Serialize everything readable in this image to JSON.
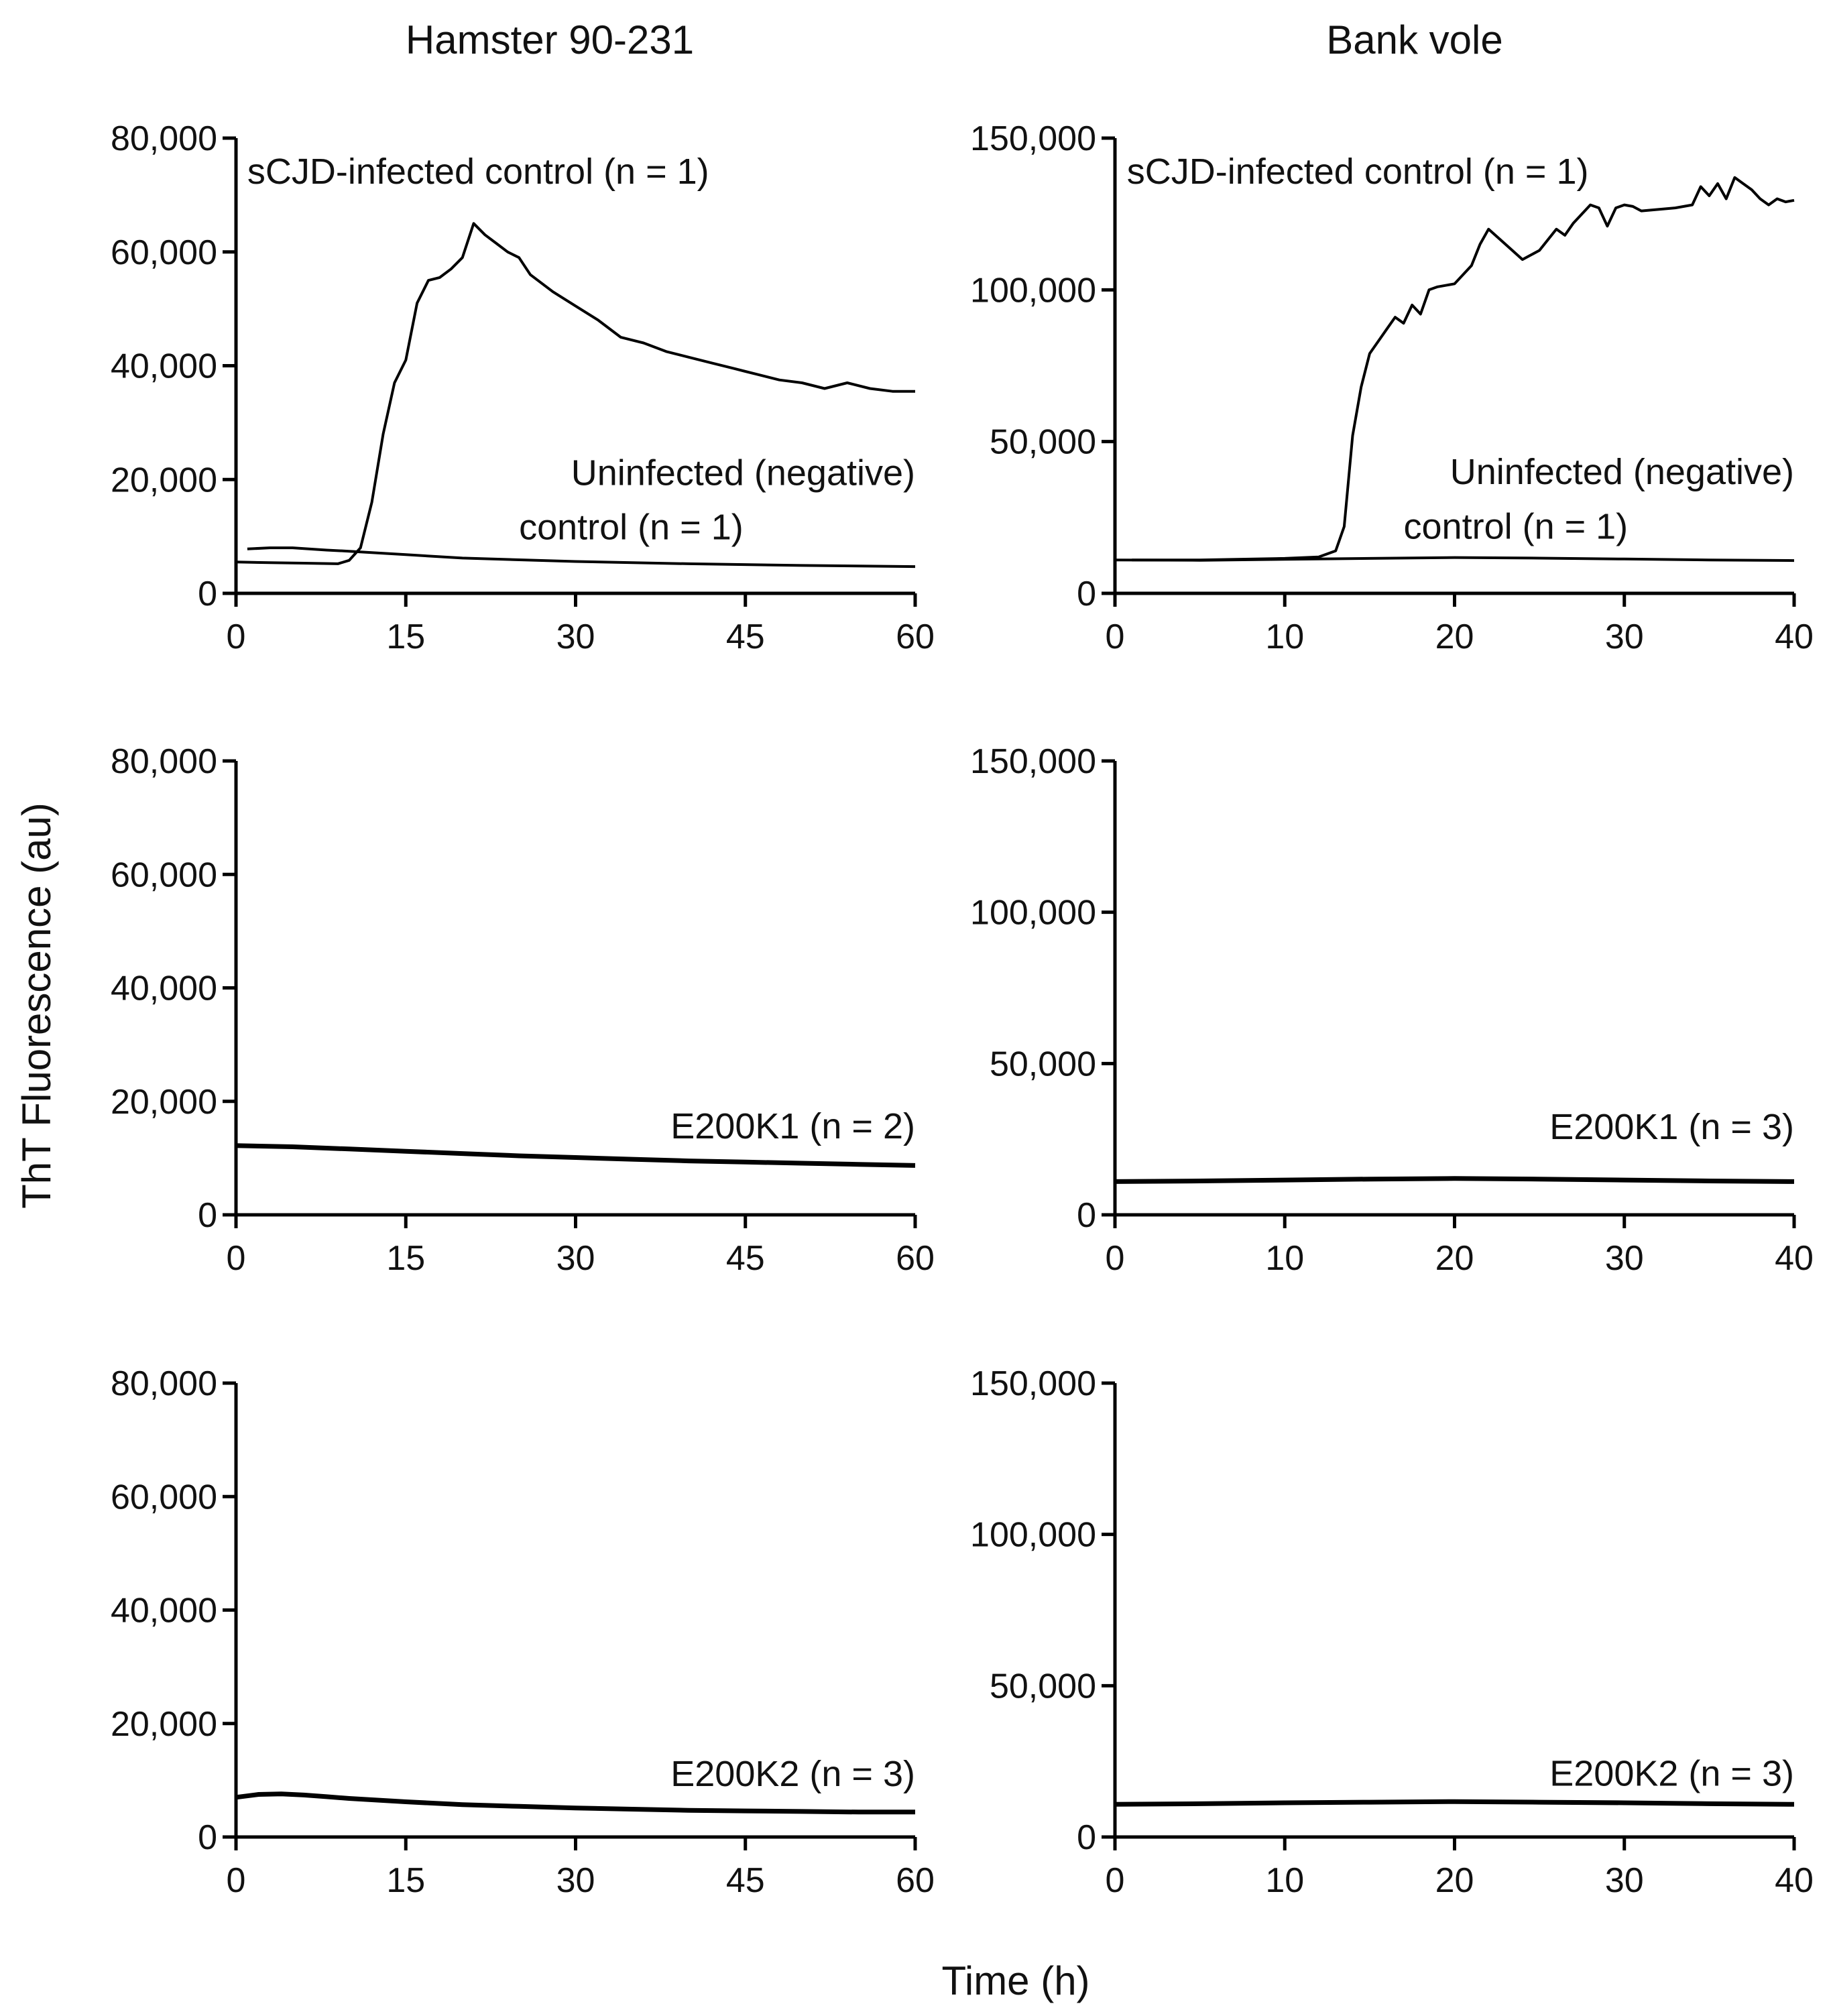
{
  "figure": {
    "column_titles": [
      "Hamster 90-231",
      "Bank vole"
    ],
    "y_axis_title": "ThT Fluorescence (au)",
    "x_axis_title": "Time (h)"
  },
  "chart_data": [
    {
      "id": "hamster-controls",
      "type": "line",
      "column": "Hamster 90-231",
      "xlabel": "Time (h)",
      "ylabel": "ThT Fluorescence (au)",
      "xlim": [
        0,
        60
      ],
      "ylim": [
        0,
        80000
      ],
      "xticks": [
        0,
        15,
        30,
        45,
        60
      ],
      "xtick_labels": [
        "0",
        "15",
        "30",
        "45",
        "60"
      ],
      "yticks": [
        0,
        20000,
        40000,
        60000,
        80000
      ],
      "ytick_labels": [
        "0",
        "20,000",
        "40,000",
        "60,000",
        "80,000"
      ],
      "annotations": [
        {
          "text": "sCJD-infected control (n = 1)",
          "x": 1,
          "y": 72000,
          "anchor": "start"
        },
        {
          "text": "Uninfected (negative)",
          "x": 60,
          "y": 19000,
          "anchor": "end"
        },
        {
          "text": "control (n = 1)",
          "x": 25,
          "y": 9500,
          "anchor": "start"
        }
      ],
      "series": [
        {
          "name": "sCJD-infected control (n = 1)",
          "x": [
            0,
            3,
            6,
            9,
            10,
            11,
            12,
            13,
            14,
            15,
            16,
            17,
            18,
            19,
            20,
            21,
            22,
            23,
            24,
            25,
            26,
            28,
            30,
            32,
            34,
            36,
            38,
            40,
            42,
            44,
            45,
            46,
            48,
            50,
            52,
            54,
            56,
            58,
            60
          ],
          "y": [
            5500,
            5400,
            5300,
            5200,
            5800,
            8000,
            16000,
            28000,
            37000,
            41000,
            51000,
            55000,
            55500,
            57000,
            59000,
            65000,
            63000,
            61500,
            60000,
            59000,
            56000,
            53000,
            50500,
            48000,
            45000,
            44000,
            42500,
            41500,
            40500,
            39500,
            39000,
            38500,
            37500,
            37000,
            36000,
            37000,
            36000,
            35500,
            35500
          ]
        },
        {
          "name": "Uninfected (negative) control (n = 1)",
          "x": [
            1,
            3,
            5,
            8,
            10,
            15,
            20,
            30,
            40,
            50,
            60
          ],
          "y": [
            7800,
            8000,
            8000,
            7600,
            7400,
            6800,
            6200,
            5600,
            5200,
            4900,
            4700
          ]
        }
      ]
    },
    {
      "id": "vole-controls",
      "type": "line",
      "column": "Bank vole",
      "xlabel": "Time (h)",
      "ylabel": "ThT Fluorescence (au)",
      "xlim": [
        0,
        40
      ],
      "ylim": [
        0,
        150000
      ],
      "xticks": [
        0,
        10,
        20,
        30,
        40
      ],
      "xtick_labels": [
        "0",
        "10",
        "20",
        "30",
        "40"
      ],
      "yticks": [
        0,
        50000,
        100000,
        150000
      ],
      "ytick_labels": [
        "0",
        "50,000",
        "100,000",
        "150,000"
      ],
      "annotations": [
        {
          "text": "sCJD-infected control (n = 1)",
          "x": 0.7,
          "y": 135000,
          "anchor": "start"
        },
        {
          "text": "Uninfected (negative)",
          "x": 40,
          "y": 36000,
          "anchor": "end"
        },
        {
          "text": "control (n = 1)",
          "x": 17,
          "y": 18000,
          "anchor": "start"
        }
      ],
      "series": [
        {
          "name": "sCJD-infected control (n = 1)",
          "x": [
            1,
            5,
            10,
            12,
            13,
            13.5,
            14,
            14.5,
            15,
            16,
            16.5,
            17,
            17.5,
            18,
            18.5,
            19,
            20,
            21,
            21.5,
            22,
            23,
            24,
            25,
            26,
            26.5,
            27,
            27.5,
            28,
            28.5,
            29,
            29.5,
            30,
            30.5,
            31,
            32,
            33,
            34,
            34.5,
            35,
            35.5,
            36,
            36.5,
            37,
            37.5,
            38,
            38.5,
            39,
            39.5,
            40
          ],
          "y": [
            11000,
            11000,
            11500,
            12000,
            14000,
            22000,
            52000,
            68000,
            79000,
            87000,
            91000,
            89000,
            95000,
            92000,
            100000,
            101000,
            102000,
            108000,
            115000,
            120000,
            115000,
            110000,
            113000,
            120000,
            118000,
            122000,
            125000,
            128000,
            127000,
            121000,
            127000,
            128000,
            127500,
            126000,
            126500,
            127000,
            128000,
            134000,
            131000,
            135000,
            130000,
            137000,
            135000,
            133000,
            130000,
            128000,
            130000,
            129000,
            129500
          ]
        },
        {
          "name": "Uninfected (negative) control (n = 1)",
          "x": [
            0,
            5,
            10,
            15,
            20,
            25,
            30,
            35,
            40
          ],
          "y": [
            11000,
            10900,
            11200,
            11500,
            11800,
            11600,
            11300,
            11000,
            10800
          ]
        }
      ]
    },
    {
      "id": "hamster-e200k1",
      "type": "line",
      "column": "Hamster 90-231",
      "xlabel": "Time (h)",
      "ylabel": "ThT Fluorescence (au)",
      "xlim": [
        0,
        60
      ],
      "ylim": [
        0,
        80000
      ],
      "xticks": [
        0,
        15,
        30,
        45,
        60
      ],
      "xtick_labels": [
        "0",
        "15",
        "30",
        "45",
        "60"
      ],
      "yticks": [
        0,
        20000,
        40000,
        60000,
        80000
      ],
      "ytick_labels": [
        "0",
        "20,000",
        "40,000",
        "60,000",
        "80,000"
      ],
      "annotations": [
        {
          "text": "E200K1 (n = 2)",
          "x": 60,
          "y": 13500,
          "anchor": "end"
        }
      ],
      "series": [
        {
          "name": "E200K1 (n = 2)",
          "x": [
            0,
            5,
            10,
            15,
            20,
            25,
            30,
            35,
            40,
            45,
            50,
            55,
            60
          ],
          "y": [
            12200,
            12000,
            11600,
            11200,
            10800,
            10400,
            10100,
            9800,
            9500,
            9300,
            9100,
            8900,
            8700
          ]
        }
      ]
    },
    {
      "id": "vole-e200k1",
      "type": "line",
      "column": "Bank vole",
      "xlabel": "Time (h)",
      "ylabel": "ThT Fluorescence (au)",
      "xlim": [
        0,
        40
      ],
      "ylim": [
        0,
        150000
      ],
      "xticks": [
        0,
        10,
        20,
        30,
        40
      ],
      "xtick_labels": [
        "0",
        "10",
        "20",
        "30",
        "40"
      ],
      "yticks": [
        0,
        50000,
        100000,
        150000
      ],
      "ytick_labels": [
        "0",
        "50,000",
        "100,000",
        "150,000"
      ],
      "annotations": [
        {
          "text": "E200K1 (n = 3)",
          "x": 40,
          "y": 25000,
          "anchor": "end"
        }
      ],
      "series": [
        {
          "name": "E200K1 (n = 3)",
          "x": [
            0,
            5,
            10,
            15,
            20,
            25,
            30,
            35,
            40
          ],
          "y": [
            11000,
            11200,
            11500,
            11800,
            12000,
            11800,
            11500,
            11200,
            11000
          ]
        }
      ]
    },
    {
      "id": "hamster-e200k2",
      "type": "line",
      "column": "Hamster 90-231",
      "xlabel": "Time (h)",
      "ylabel": "ThT Fluorescence (au)",
      "xlim": [
        0,
        60
      ],
      "ylim": [
        0,
        80000
      ],
      "xticks": [
        0,
        15,
        30,
        45,
        60
      ],
      "xtick_labels": [
        "0",
        "15",
        "30",
        "45",
        "60"
      ],
      "yticks": [
        0,
        20000,
        40000,
        60000,
        80000
      ],
      "ytick_labels": [
        "0",
        "20,000",
        "40,000",
        "60,000",
        "80,000"
      ],
      "annotations": [
        {
          "text": "E200K2 (n = 3)",
          "x": 60,
          "y": 9000,
          "anchor": "end"
        }
      ],
      "series": [
        {
          "name": "E200K2 (n = 3)",
          "x": [
            0,
            2,
            4,
            6,
            8,
            10,
            15,
            20,
            25,
            30,
            35,
            40,
            45,
            50,
            55,
            60
          ],
          "y": [
            7000,
            7500,
            7600,
            7400,
            7100,
            6800,
            6200,
            5700,
            5400,
            5100,
            4900,
            4700,
            4600,
            4500,
            4400,
            4400
          ]
        }
      ]
    },
    {
      "id": "vole-e200k2",
      "type": "line",
      "column": "Bank vole",
      "xlabel": "Time (h)",
      "ylabel": "ThT Fluorescence (au)",
      "xlim": [
        0,
        40
      ],
      "ylim": [
        0,
        150000
      ],
      "xticks": [
        0,
        10,
        20,
        30,
        40
      ],
      "xtick_labels": [
        "0",
        "10",
        "20",
        "30",
        "40"
      ],
      "yticks": [
        0,
        50000,
        100000,
        150000
      ],
      "ytick_labels": [
        "0",
        "50,000",
        "100,000",
        "150,000"
      ],
      "annotations": [
        {
          "text": "E200K2 (n = 3)",
          "x": 40,
          "y": 17000,
          "anchor": "end"
        }
      ],
      "series": [
        {
          "name": "E200K2 (n = 3)",
          "x": [
            0,
            5,
            10,
            15,
            20,
            25,
            30,
            35,
            40
          ],
          "y": [
            10800,
            11000,
            11300,
            11500,
            11700,
            11500,
            11300,
            11000,
            10800
          ]
        }
      ]
    }
  ]
}
